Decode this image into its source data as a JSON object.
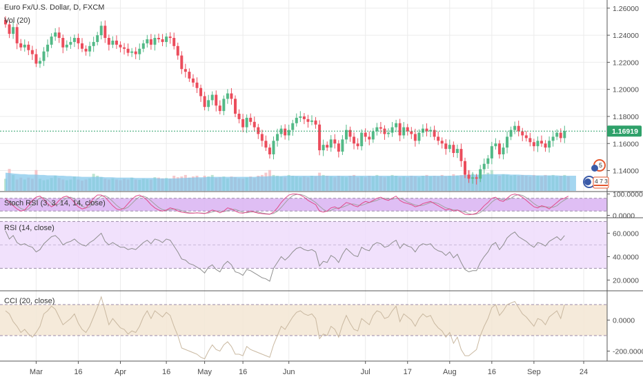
{
  "colors": {
    "up": "#53b987",
    "down": "#eb4d5c",
    "volume_area": "#7ec4ea",
    "stoch_band": "#d9b3f2",
    "rsi_band": "#eedcfb",
    "cci_band": "#f3e6d3",
    "price_tag": "#2fa16a",
    "grid": "#ebebeb"
  },
  "header": {
    "symbol_title": "Euro Fx/U.S. Dollar, D, FXCM",
    "volume_label": "Vol (20)"
  },
  "price_tag": {
    "value": "1.16919",
    "value_num": 1.16919
  },
  "event_badges": {
    "top": "5",
    "bottom": "4 7 3"
  },
  "icons": [
    "flag-icon",
    "flag-icon"
  ],
  "chart_data": [
    {
      "type": "candlestick",
      "title": "Euro Fx/U.S. Dollar, D, FXCM",
      "ylim": [
        1.125,
        1.265
      ],
      "y_ticks": [
        "1.26000",
        "1.24000",
        "1.22000",
        "1.20000",
        "1.18000",
        "1.16000",
        "1.14000"
      ],
      "y_tick_values": [
        1.26,
        1.24,
        1.22,
        1.2,
        1.18,
        1.16,
        1.14
      ],
      "x_labels": [
        "Mar",
        "16",
        "Apr",
        "16",
        "May",
        "16",
        "Jun",
        "Jul",
        "17",
        "Aug",
        "16",
        "Sep",
        "24"
      ],
      "x_label_index": [
        8,
        19,
        30,
        42,
        52,
        62,
        74,
        94,
        105,
        116,
        127,
        138,
        151
      ],
      "closes": [
        1.248,
        1.241,
        1.246,
        1.234,
        1.231,
        1.233,
        1.229,
        1.226,
        1.219,
        1.221,
        1.228,
        1.233,
        1.239,
        1.242,
        1.238,
        1.231,
        1.233,
        1.235,
        1.238,
        1.234,
        1.23,
        1.228,
        1.232,
        1.235,
        1.24,
        1.247,
        1.238,
        1.233,
        1.236,
        1.233,
        1.231,
        1.23,
        1.227,
        1.228,
        1.226,
        1.23,
        1.234,
        1.237,
        1.233,
        1.238,
        1.237,
        1.235,
        1.239,
        1.238,
        1.232,
        1.225,
        1.215,
        1.213,
        1.208,
        1.205,
        1.201,
        1.195,
        1.187,
        1.192,
        1.196,
        1.188,
        1.184,
        1.193,
        1.197,
        1.193,
        1.182,
        1.178,
        1.172,
        1.179,
        1.176,
        1.172,
        1.167,
        1.162,
        1.157,
        1.152,
        1.162,
        1.167,
        1.171,
        1.166,
        1.17,
        1.175,
        1.179,
        1.18,
        1.178,
        1.176,
        1.177,
        1.174,
        1.155,
        1.159,
        1.157,
        1.163,
        1.16,
        1.154,
        1.163,
        1.17,
        1.165,
        1.16,
        1.158,
        1.168,
        1.165,
        1.163,
        1.169,
        1.172,
        1.171,
        1.167,
        1.168,
        1.172,
        1.175,
        1.166,
        1.172,
        1.169,
        1.167,
        1.162,
        1.168,
        1.171,
        1.169,
        1.17,
        1.165,
        1.162,
        1.16,
        1.156,
        1.159,
        1.153,
        1.156,
        1.147,
        1.137,
        1.134,
        1.135,
        1.134,
        1.141,
        1.145,
        1.149,
        1.158,
        1.16,
        1.152,
        1.157,
        1.165,
        1.17,
        1.173,
        1.169,
        1.166,
        1.164,
        1.161,
        1.158,
        1.162,
        1.16,
        1.157,
        1.162,
        1.165,
        1.168,
        1.164,
        1.1692
      ]
    },
    {
      "type": "area",
      "title": "Vol (20)",
      "description": "volume bars with 20-period moving average area",
      "bars": [
        0.32,
        0.58,
        0.42,
        0.3,
        0.35,
        0.3,
        0.35,
        0.32,
        0.55,
        0.32,
        0.28,
        0.3,
        0.34,
        0.4,
        0.34,
        0.3,
        0.28,
        0.3,
        0.38,
        0.3,
        0.27,
        0.3,
        0.33,
        0.45,
        0.4,
        0.36,
        0.32,
        0.3,
        0.33,
        0.3,
        0.28,
        0.32,
        0.3,
        0.35,
        0.3,
        0.29,
        0.32,
        0.31,
        0.3,
        0.36,
        0.35,
        0.33,
        0.34,
        0.32,
        0.4,
        0.36,
        0.38,
        0.42,
        0.35,
        0.38,
        0.4,
        0.33,
        0.4,
        0.38,
        0.42,
        0.34,
        0.36,
        0.38,
        0.33,
        0.38,
        0.36,
        0.33,
        0.32,
        0.35,
        0.38,
        0.34,
        0.4,
        0.42,
        0.48,
        0.55,
        0.42,
        0.4,
        0.38,
        0.36,
        0.42,
        0.4,
        0.38,
        0.36,
        0.38,
        0.36,
        0.4,
        0.38,
        0.48,
        0.42,
        0.4,
        0.38,
        0.36,
        0.4,
        0.38,
        0.36,
        0.4,
        0.42,
        0.36,
        0.38,
        0.36,
        0.4,
        0.38,
        0.42,
        0.38,
        0.36,
        0.38,
        0.42,
        0.4,
        0.36,
        0.38,
        0.36,
        0.4,
        0.38,
        0.36,
        0.4,
        0.42,
        0.38,
        0.4,
        0.38,
        0.42,
        0.38,
        0.4,
        0.44,
        0.4,
        0.42,
        0.48,
        0.55,
        0.45,
        0.4,
        0.42,
        0.45,
        0.48,
        0.55,
        0.42,
        0.4,
        0.44,
        0.42,
        0.4,
        0.42,
        0.4,
        0.42,
        0.4,
        0.38,
        0.42,
        0.4,
        0.38,
        0.42,
        0.4,
        0.42,
        0.38,
        0.4,
        0.42,
        0.38
      ],
      "avg": [
        0.48,
        0.47,
        0.46,
        0.45,
        0.44,
        0.44,
        0.43,
        0.43,
        0.43,
        0.42,
        0.42,
        0.41,
        0.41,
        0.41,
        0.4,
        0.4,
        0.39,
        0.39,
        0.38,
        0.38,
        0.37,
        0.37,
        0.37,
        0.37,
        0.37,
        0.37,
        0.36,
        0.36,
        0.36,
        0.35,
        0.35,
        0.35,
        0.35,
        0.35,
        0.34,
        0.34,
        0.34,
        0.34,
        0.34,
        0.34,
        0.33,
        0.33,
        0.33,
        0.33,
        0.33,
        0.33,
        0.34,
        0.34,
        0.35,
        0.35,
        0.36,
        0.36,
        0.36,
        0.37,
        0.37,
        0.37,
        0.37,
        0.37,
        0.37,
        0.37,
        0.37,
        0.37,
        0.37,
        0.37,
        0.37,
        0.37,
        0.38,
        0.38,
        0.38,
        0.39,
        0.39,
        0.39,
        0.39,
        0.4,
        0.4,
        0.4,
        0.4,
        0.4,
        0.4,
        0.4,
        0.4,
        0.4,
        0.4,
        0.4,
        0.4,
        0.4,
        0.4,
        0.4,
        0.4,
        0.4,
        0.4,
        0.4,
        0.4,
        0.4,
        0.4,
        0.4,
        0.4,
        0.4,
        0.4,
        0.4,
        0.4,
        0.4,
        0.4,
        0.4,
        0.4,
        0.4,
        0.4,
        0.4,
        0.4,
        0.4,
        0.4,
        0.4,
        0.4,
        0.4,
        0.4,
        0.4,
        0.4,
        0.4,
        0.41,
        0.41,
        0.42,
        0.42,
        0.43,
        0.43,
        0.43,
        0.43,
        0.44,
        0.44,
        0.44,
        0.44,
        0.44,
        0.44,
        0.43,
        0.43,
        0.43,
        0.42,
        0.42,
        0.42,
        0.41,
        0.41,
        0.41,
        0.41,
        0.41,
        0.41,
        0.41,
        0.4,
        0.4,
        0.4,
        0.4,
        0.4
      ]
    },
    {
      "type": "line",
      "title": "Stoch RSI (3, 3, 14, 14, close)",
      "ylim": [
        -8,
        108
      ],
      "y_ticks": [
        "100.0000",
        "0.0000"
      ],
      "y_tick_values": [
        100,
        0
      ],
      "band": [
        20,
        80
      ],
      "series": [
        {
          "name": "K",
          "color": "#e04a8a",
          "values": [
            80,
            60,
            45,
            30,
            20,
            25,
            45,
            70,
            85,
            90,
            75,
            55,
            40,
            50,
            70,
            85,
            90,
            80,
            60,
            40,
            30,
            35,
            55,
            80,
            95,
            95,
            85,
            65,
            45,
            30,
            25,
            35,
            55,
            75,
            90,
            95,
            85,
            70,
            50,
            35,
            25,
            20,
            25,
            35,
            30,
            20,
            15,
            12,
            10,
            10,
            12,
            10,
            8,
            15,
            25,
            20,
            12,
            20,
            35,
            30,
            20,
            12,
            10,
            15,
            20,
            15,
            10,
            8,
            6,
            5,
            15,
            35,
            60,
            80,
            95,
            100,
            100,
            95,
            85,
            70,
            60,
            50,
            20,
            15,
            20,
            35,
            40,
            30,
            45,
            60,
            55,
            45,
            40,
            55,
            65,
            60,
            70,
            80,
            85,
            75,
            70,
            80,
            90,
            70,
            60,
            55,
            50,
            40,
            45,
            55,
            60,
            65,
            55,
            45,
            35,
            25,
            30,
            20,
            25,
            15,
            5,
            3,
            5,
            10,
            25,
            45,
            60,
            80,
            85,
            70,
            65,
            80,
            95,
            100,
            95,
            85,
            70,
            55,
            40,
            35,
            45,
            40,
            30,
            45,
            60,
            75,
            80,
            90
          ]
        },
        {
          "name": "D",
          "color": "#a0a0a0",
          "values": [
            70,
            65,
            55,
            45,
            32,
            25,
            30,
            47,
            67,
            82,
            83,
            73,
            57,
            48,
            53,
            68,
            82,
            85,
            77,
            60,
            43,
            35,
            40,
            57,
            77,
            90,
            92,
            82,
            65,
            47,
            33,
            30,
            38,
            55,
            73,
            87,
            90,
            83,
            68,
            52,
            37,
            27,
            23,
            27,
            30,
            28,
            22,
            16,
            12,
            11,
            11,
            11,
            10,
            11,
            16,
            20,
            19,
            17,
            22,
            28,
            28,
            21,
            14,
            12,
            15,
            17,
            15,
            11,
            8,
            6,
            9,
            19,
            37,
            58,
            78,
            92,
            98,
            98,
            93,
            83,
            72,
            60,
            43,
            28,
            18,
            23,
            32,
            35,
            38,
            45,
            53,
            53,
            47,
            47,
            53,
            60,
            65,
            70,
            78,
            80,
            77,
            75,
            80,
            80,
            73,
            62,
            55,
            48,
            45,
            47,
            53,
            60,
            60,
            55,
            45,
            35,
            30,
            25,
            25,
            20,
            15,
            8,
            4,
            6,
            13,
            27,
            43,
            62,
            75,
            78,
            73,
            72,
            80,
            92,
            97,
            93,
            83,
            70,
            55,
            43,
            40,
            40,
            38,
            38,
            45,
            60,
            72,
            82
          ]
        }
      ]
    },
    {
      "type": "line",
      "title": "RSI (14, close)",
      "ylim": [
        12,
        72
      ],
      "y_ticks": [
        "60.0000",
        "40.0000",
        "20.0000"
      ],
      "y_tick_values": [
        60,
        40,
        20
      ],
      "band": [
        30,
        70
      ],
      "series": [
        {
          "name": "RSI",
          "color": "#8e8e8e",
          "values": [
            62,
            55,
            58,
            52,
            50,
            51,
            49,
            48,
            44,
            46,
            51,
            54,
            57,
            58,
            55,
            50,
            52,
            53,
            55,
            52,
            50,
            49,
            52,
            54,
            57,
            60,
            53,
            50,
            52,
            50,
            48,
            48,
            46,
            47,
            46,
            49,
            52,
            54,
            51,
            55,
            54,
            52,
            55,
            54,
            49,
            44,
            38,
            37,
            34,
            33,
            31,
            29,
            26,
            31,
            33,
            29,
            27,
            33,
            36,
            33,
            27,
            26,
            24,
            29,
            28,
            26,
            24,
            22,
            21,
            19,
            30,
            35,
            40,
            37,
            40,
            44,
            47,
            48,
            46,
            45,
            46,
            44,
            32,
            36,
            35,
            41,
            39,
            35,
            42,
            47,
            44,
            41,
            40,
            48,
            46,
            45,
            50,
            52,
            51,
            48,
            49,
            52,
            54,
            47,
            51,
            49,
            48,
            44,
            49,
            51,
            50,
            51,
            47,
            45,
            44,
            41,
            44,
            39,
            42,
            35,
            29,
            27,
            28,
            28,
            35,
            40,
            44,
            50,
            52,
            46,
            50,
            56,
            59,
            61,
            57,
            55,
            53,
            50,
            48,
            52,
            51,
            49,
            53,
            55,
            57,
            54,
            58
          ]
        }
      ]
    },
    {
      "type": "line",
      "title": "CCI (20, close)",
      "ylim": [
        -260,
        180
      ],
      "y_ticks": [
        "0.0000",
        "-200.0000"
      ],
      "y_tick_values": [
        0,
        -200
      ],
      "band": [
        -100,
        100
      ],
      "series": [
        {
          "name": "CCI",
          "color": "#c9b8a0",
          "values": [
            60,
            40,
            -10,
            -40,
            -80,
            -60,
            -90,
            -110,
            -80,
            -40,
            40,
            60,
            90,
            70,
            20,
            -30,
            -10,
            10,
            40,
            -20,
            -60,
            -80,
            -40,
            20,
            80,
            150,
            60,
            -30,
            10,
            -20,
            -50,
            -60,
            -90,
            -70,
            -80,
            -40,
            20,
            60,
            10,
            60,
            40,
            20,
            50,
            30,
            -40,
            -100,
            -180,
            -190,
            -200,
            -210,
            -220,
            -240,
            -250,
            -200,
            -160,
            -190,
            -200,
            -160,
            -140,
            -170,
            -220,
            -220,
            -230,
            -170,
            -190,
            -200,
            -210,
            -220,
            -230,
            -240,
            -160,
            -100,
            -40,
            -60,
            -20,
            20,
            50,
            60,
            40,
            30,
            40,
            10,
            -120,
            -90,
            -100,
            -40,
            -60,
            -110,
            -30,
            30,
            -20,
            -60,
            -70,
            10,
            -10,
            -30,
            30,
            60,
            50,
            10,
            20,
            60,
            90,
            -10,
            40,
            20,
            0,
            -40,
            10,
            40,
            20,
            30,
            -20,
            -50,
            -70,
            -110,
            -80,
            -150,
            -110,
            -190,
            -230,
            -230,
            -210,
            -190,
            -100,
            -40,
            10,
            80,
            100,
            30,
            60,
            100,
            110,
            120,
            80,
            40,
            20,
            -10,
            -40,
            10,
            0,
            -30,
            20,
            40,
            60,
            10,
            100
          ]
        }
      ]
    }
  ]
}
